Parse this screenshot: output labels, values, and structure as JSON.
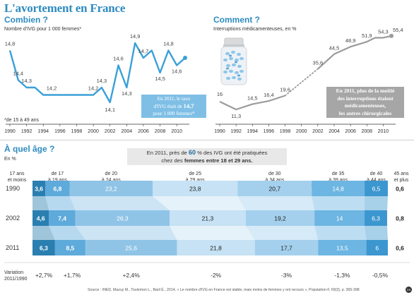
{
  "title": "L'avortement en France",
  "footnote": "*de 15 à 49 ans",
  "source": "Source : INED, Mazuy M., Toulemon L., Baril É., 2014, « Le nombre d'IVG en France est stable, mais moins de femmes y ont recours », Population-F, 69(3), p. 365-398",
  "colors": {
    "title": "#2e8bc0",
    "chart1_line": "#3aa0d8",
    "chart2_line": "#9b9b9b",
    "bar_c0": "#2a7fb0",
    "bar_c1": "#5eaadb",
    "bar_c2": "#8fc4e7",
    "bar_c3": "#c6e2f4",
    "bar_c4": "#a4d0ee",
    "bar_c5": "#6db5e2",
    "bar_c6": "#3c96cf",
    "bar_c7": "#1e6fa1"
  },
  "chart_data": [
    {
      "type": "line",
      "title": "Combien ?",
      "ylabel": "Nombre d'IVG pour 1 000 femmes*",
      "x": [
        1990,
        1991,
        1992,
        1993,
        1994,
        1995,
        1996,
        1997,
        1998,
        1999,
        2000,
        2001,
        2002,
        2003,
        2004,
        2005,
        2006,
        2007,
        2008,
        2009,
        2010,
        2011
      ],
      "series": [
        {
          "values": [
            14.8,
            14.4,
            14.3,
            14.3,
            14.2,
            14.2,
            14.2,
            14.2,
            14.2,
            14.2,
            14.2,
            14.3,
            14.1,
            14.6,
            14.3,
            14.9,
            14.7,
            14.8,
            14.5,
            14.8,
            14.6,
            14.7
          ]
        }
      ],
      "point_labels": [
        {
          "x": 1990,
          "label": "14,8"
        },
        {
          "x": 1991,
          "label": "14,4"
        },
        {
          "x": 1992,
          "label": "14,3"
        },
        {
          "x": 1995,
          "label": "14,2"
        },
        {
          "x": 2000,
          "label": "14,2"
        },
        {
          "x": 2001,
          "label": "14,3"
        },
        {
          "x": 2002,
          "label": "14,1"
        },
        {
          "x": 2003,
          "label": "14,6"
        },
        {
          "x": 2004,
          "label": "14,3"
        },
        {
          "x": 2005,
          "label": "14,9"
        },
        {
          "x": 2006,
          "label": "14,7"
        },
        {
          "x": 2008,
          "label": "14,5"
        },
        {
          "x": 2009,
          "label": "14,8"
        },
        {
          "x": 2010,
          "label": "14,6"
        }
      ],
      "x_ticks": [
        "1990",
        "1992",
        "1994",
        "1996",
        "1998",
        "2000",
        "2002",
        "2004",
        "2006",
        "2008",
        "2010"
      ],
      "ylim": [
        13.9,
        15.1
      ],
      "annotation": {
        "line1": "En 2011, le taux",
        "line2_prefix": "d'IVG était de",
        "line2_value": "14,7",
        "line3": "pour 1 000 femmes*"
      }
    },
    {
      "type": "line",
      "title": "Comment ?",
      "ylabel": "Interruptions médicamenteuses, en %",
      "x": [
        1990,
        1992,
        1994,
        1996,
        1998,
        2002,
        2004,
        2006,
        2008,
        2009,
        2010,
        2011
      ],
      "series": [
        {
          "values": [
            16.0,
            11.3,
            14.5,
            16.4,
            19.6,
            35.6,
            44.5,
            48.9,
            51.9,
            54.3,
            54.3,
            55.4
          ]
        }
      ],
      "dotted_until_x": 2002,
      "point_labels": [
        {
          "x": 1990,
          "label": "16"
        },
        {
          "x": 1992,
          "label": "11,3"
        },
        {
          "x": 1994,
          "label": "14,5"
        },
        {
          "x": 1996,
          "label": "16,4"
        },
        {
          "x": 1998,
          "label": "19,6"
        },
        {
          "x": 2002,
          "label": "35,6"
        },
        {
          "x": 2004,
          "label": "44,5"
        },
        {
          "x": 2006,
          "label": "48,9"
        },
        {
          "x": 2008,
          "label": "51,9"
        },
        {
          "x": 2010,
          "label": "54,3"
        },
        {
          "x": 2011,
          "label": "55,4"
        }
      ],
      "x_ticks": [
        "1990",
        "1992",
        "1994",
        "1996",
        "1998",
        "2000",
        "2002",
        "2004",
        "2006",
        "2008",
        "2010"
      ],
      "ylim": [
        5,
        60
      ],
      "annotation": {
        "line1": "En 2011, plus de la moitié",
        "line2": "des interruptions étaient",
        "line3": "médicamenteuses,",
        "line4": "les autres chirurgicales"
      }
    },
    {
      "type": "bar",
      "stacked": true,
      "title": "À quel âge ?",
      "ylabel": "En %",
      "headline": {
        "prefix": "En 2011, près de",
        "value": "60",
        "suffix": "% des IVG ont été pratiquées",
        "line2_prefix": "chez des",
        "line2_bold": "femmes entre 18 et 29 ans."
      },
      "categories": [
        {
          "line1": "17 ans",
          "line2": "et moins"
        },
        {
          "line1": "de 17",
          "line2": "à 19 ans"
        },
        {
          "line1": "de 20",
          "line2": "à 24 ans"
        },
        {
          "line1": "de 25",
          "line2": "à 29 ans"
        },
        {
          "line1": "de 30",
          "line2": "à 34 ans"
        },
        {
          "line1": "de 35",
          "line2": "à 39 ans"
        },
        {
          "line1": "de 40",
          "line2": "à 44 ans"
        },
        {
          "line1": "45 ans",
          "line2": "et plus"
        }
      ],
      "years": [
        {
          "year": "1990",
          "values": [
            3.6,
            6.8,
            23.2,
            23.8,
            20.7,
            14.8,
            6.5,
            0.6
          ],
          "labels": [
            "3,6",
            "6,8",
            "23,2",
            "23,8",
            "20,7",
            "14,8",
            "6,5",
            "0,6"
          ]
        },
        {
          "year": "2002",
          "values": [
            4.6,
            7.4,
            26.3,
            21.3,
            19.2,
            14,
            6.3,
            0.8
          ],
          "labels": [
            "4,6",
            "7,4",
            "26,3",
            "21,3",
            "19,2",
            "14",
            "6,3",
            "0,8"
          ]
        },
        {
          "year": "2011",
          "values": [
            6.3,
            8.5,
            25.6,
            21.8,
            17.7,
            13.5,
            6,
            0.6
          ],
          "labels": [
            "6,3",
            "8,5",
            "25,6",
            "21,8",
            "17,7",
            "13,5",
            "6",
            "0,6"
          ]
        }
      ],
      "variation_label": {
        "line1": "Variation",
        "line2": "2011/1990"
      },
      "variation": [
        "+2,7%",
        "+1,7%",
        "+2,4%",
        "-2%",
        "-3%",
        "-1,3%",
        "-0,5%"
      ]
    }
  ]
}
